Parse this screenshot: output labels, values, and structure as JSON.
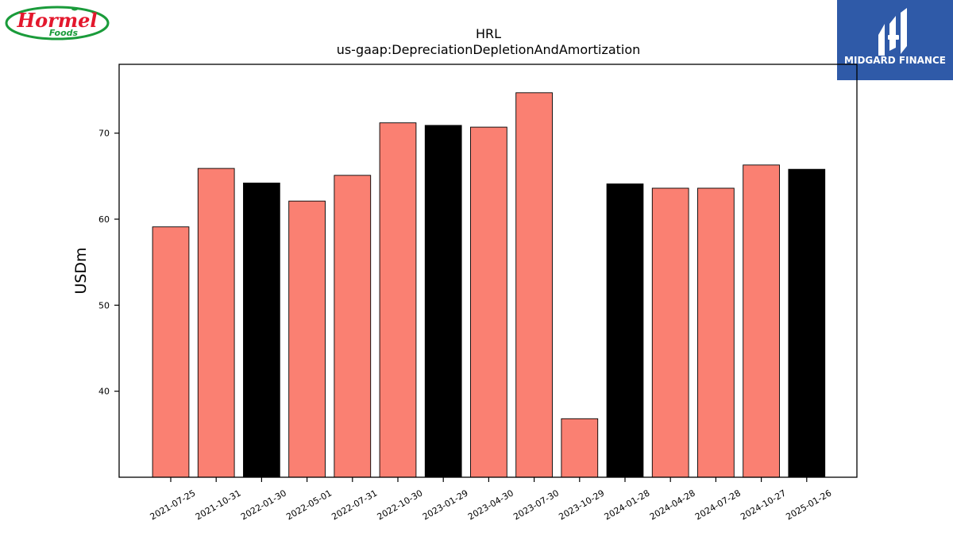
{
  "brand": {
    "name": "Hormel Foods",
    "line1": "Hormel",
    "line2": "Foods"
  },
  "publisher": {
    "name": "MIDGARD FINANCE",
    "bg_color": "#2f5aa8"
  },
  "chart_data": {
    "type": "bar",
    "title": "HRL",
    "subtitle": "us-gaap:DepreciationDepletionAndAmortization",
    "xlabel": "",
    "ylabel": "USDm",
    "ylim": [
      30,
      78
    ],
    "yticks": [
      40,
      50,
      60,
      70
    ],
    "grid": false,
    "categories": [
      "2021-07-25",
      "2021-10-31",
      "2022-01-30",
      "2022-05-01",
      "2022-07-31",
      "2022-10-30",
      "2023-01-29",
      "2023-04-30",
      "2023-07-30",
      "2023-10-29",
      "2024-01-28",
      "2024-04-28",
      "2024-07-28",
      "2024-10-27",
      "2025-01-26"
    ],
    "values": [
      59.1,
      65.9,
      64.2,
      62.1,
      65.1,
      71.2,
      70.9,
      70.7,
      74.7,
      36.8,
      64.1,
      63.6,
      63.6,
      66.3,
      65.8
    ],
    "bar_colors": [
      "#fa8072",
      "#fa8072",
      "#000000",
      "#fa8072",
      "#fa8072",
      "#fa8072",
      "#000000",
      "#fa8072",
      "#fa8072",
      "#fa8072",
      "#000000",
      "#fa8072",
      "#fa8072",
      "#fa8072",
      "#000000"
    ],
    "edge_color": "#000000"
  }
}
